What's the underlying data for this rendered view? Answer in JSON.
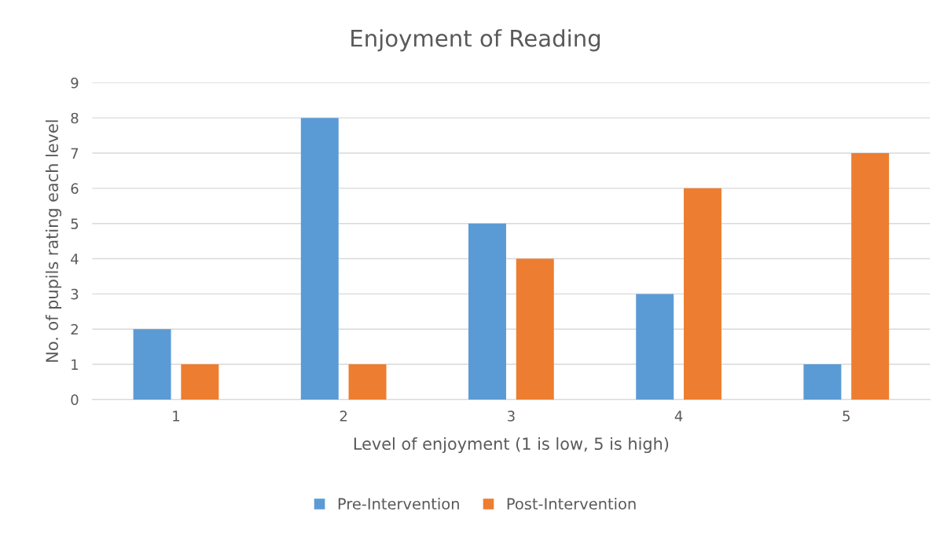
{
  "chart_data": {
    "type": "bar",
    "title": "Enjoyment of Reading",
    "xlabel": "Level of enjoyment (1 is low, 5 is high)",
    "ylabel": "No. of pupils rating each level",
    "categories": [
      "1",
      "2",
      "3",
      "4",
      "5"
    ],
    "series": [
      {
        "name": "Pre-Intervention",
        "color": "#5b9bd5",
        "values": [
          2,
          8,
          5,
          3,
          1
        ]
      },
      {
        "name": "Post-Intervention",
        "color": "#ed7d31",
        "values": [
          1,
          1,
          4,
          6,
          7
        ]
      }
    ],
    "ylim": [
      0,
      9
    ],
    "yticks": [
      0,
      1,
      2,
      3,
      4,
      5,
      6,
      7,
      8,
      9
    ],
    "grid": "y",
    "legend": "bottom"
  }
}
